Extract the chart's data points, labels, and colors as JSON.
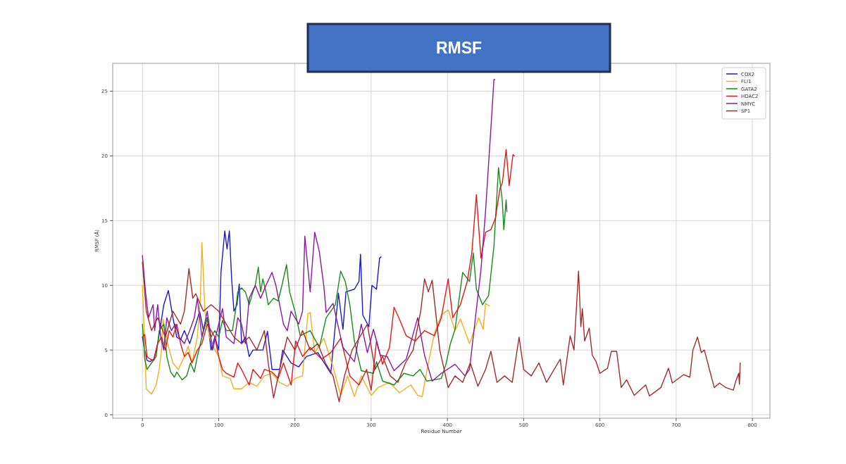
{
  "chart_data": {
    "type": "line",
    "title": "RMSF",
    "xlabel": "Residue Number",
    "ylabel": "RMSF (Å)",
    "xlim": [
      -39,
      823
    ],
    "ylim": [
      -0.27,
      27.15
    ],
    "xticks": [
      0,
      100,
      200,
      300,
      400,
      500,
      600,
      700,
      800
    ],
    "yticks": [
      0,
      5,
      10,
      15,
      20,
      25
    ],
    "grid": true,
    "legend": "top right",
    "marker": "none",
    "line_style": "solid",
    "series": [
      {
        "name": "COX2",
        "color": "#1a1acc",
        "x": [
          0,
          3,
          6,
          10,
          15,
          20,
          28,
          34,
          40,
          45,
          50,
          55,
          62,
          70,
          75,
          80,
          85,
          90,
          95,
          100,
          103,
          108,
          111,
          114,
          117,
          120,
          124,
          127,
          130,
          135,
          140,
          145,
          158,
          164,
          170,
          180,
          184,
          195,
          205,
          215,
          230,
          247,
          257,
          263,
          267,
          278,
          284,
          286,
          289,
          297,
          301,
          307,
          311,
          313
        ],
        "values": [
          6,
          5,
          4.2,
          4.1,
          4.3,
          5.5,
          8.5,
          9.6,
          7.5,
          6,
          5.8,
          6.5,
          5.5,
          7,
          8,
          6.5,
          7.5,
          5,
          6,
          5,
          11,
          14.2,
          12.8,
          14.2,
          10.5,
          8,
          8.5,
          10.1,
          5.5,
          6,
          4.5,
          5,
          5,
          6.45,
          3.5,
          3.5,
          5,
          4,
          3.7,
          4.5,
          4.8,
          3.2,
          9.4,
          6.6,
          9.5,
          9.7,
          10.3,
          12.4,
          7.7,
          6.8,
          10,
          9.7,
          12.1,
          12.2
        ]
      },
      {
        "name": "FLI1",
        "color": "#f0b020",
        "x": [
          0,
          5,
          12,
          18,
          22,
          25,
          27,
          33,
          40,
          47,
          55,
          60,
          65,
          72,
          76,
          78,
          82,
          88,
          95,
          100,
          105,
          115,
          120,
          130,
          140,
          150,
          160,
          170,
          180,
          190,
          200,
          210,
          217,
          220,
          226,
          238,
          250,
          260,
          269,
          278,
          287,
          300,
          309,
          324,
          337,
          352,
          361,
          367,
          373,
          383,
          392,
          401,
          410,
          417,
          429,
          441,
          447,
          450,
          455
        ],
        "values": [
          10,
          2,
          1.6,
          2.3,
          3.5,
          5,
          7.4,
          5.5,
          4,
          3.5,
          4.5,
          5.3,
          4,
          6,
          9,
          13.3,
          8,
          6,
          5,
          4.5,
          3,
          2.8,
          2,
          2,
          2.5,
          2.2,
          3,
          3.2,
          2.5,
          2.2,
          2.8,
          3,
          7.8,
          7.9,
          4.8,
          5.9,
          3.7,
          1.5,
          3,
          1.4,
          3,
          1.5,
          2.1,
          2.5,
          1.7,
          2.3,
          1.5,
          1.4,
          3.4,
          6.3,
          7.7,
          8.1,
          6.5,
          7.4,
          5.5,
          7.5,
          6.6,
          8.6,
          8.4
        ]
      },
      {
        "name": "GATA2",
        "color": "#1a8a1a",
        "x": [
          0,
          3,
          6,
          12,
          18,
          22,
          28,
          32,
          37,
          42,
          45,
          52,
          58,
          63,
          68,
          72,
          78,
          85,
          90,
          95,
          100,
          105,
          110,
          118,
          122,
          125,
          130,
          135,
          140,
          145,
          148,
          152,
          155,
          158,
          162,
          165,
          172,
          178,
          183,
          189,
          193,
          200,
          207,
          220,
          232,
          241,
          253,
          260,
          266,
          272,
          278,
          287,
          303,
          307,
          315,
          330,
          343,
          355,
          364,
          373,
          392,
          398,
          404,
          410,
          420,
          429,
          434,
          438,
          446,
          454,
          461,
          467,
          472,
          474,
          477,
          478
        ],
        "values": [
          7,
          4.3,
          3.5,
          4,
          4.5,
          6.5,
          7,
          4.5,
          3.3,
          2.9,
          3.3,
          2.7,
          3,
          4,
          3.3,
          4.5,
          6,
          7.5,
          6,
          6.5,
          6,
          7.3,
          6.5,
          6.5,
          8,
          9.5,
          9.8,
          9.5,
          8.5,
          9.5,
          10,
          11.4,
          9.5,
          10.5,
          9.5,
          8.5,
          9,
          8.8,
          10,
          11.6,
          9.5,
          8,
          6.1,
          6.5,
          5.2,
          7.5,
          8.5,
          11.1,
          10.3,
          8.5,
          5.7,
          3.4,
          3.2,
          4.1,
          2.6,
          2.3,
          3.2,
          3,
          3.5,
          2.6,
          2.8,
          3.9,
          5.5,
          6.6,
          11,
          10.3,
          12.5,
          9.7,
          8.5,
          9.2,
          13,
          19.1,
          16.5,
          14.3,
          16.6,
          15.7
        ]
      },
      {
        "name": "HDAC2",
        "color": "#e01818",
        "x": [
          0,
          3,
          6,
          10,
          15,
          20,
          25,
          30,
          35,
          40,
          45,
          50,
          55,
          60,
          65,
          72,
          78,
          85,
          90,
          95,
          100,
          105,
          110,
          120,
          125,
          130,
          140,
          145,
          155,
          160,
          170,
          178,
          185,
          195,
          201,
          210,
          220,
          235,
          247,
          260,
          272,
          284,
          294,
          300,
          307,
          315,
          324,
          330,
          337,
          346,
          358,
          370,
          383,
          392,
          401,
          407,
          417,
          426,
          432,
          438,
          444,
          450,
          457,
          463,
          469,
          472,
          477,
          481,
          486,
          488
        ],
        "values": [
          6,
          6.2,
          4.5,
          4.3,
          4.2,
          5.5,
          6,
          5,
          6.5,
          6,
          7,
          5.5,
          4.5,
          4.8,
          4,
          5,
          5.5,
          7,
          6.5,
          6,
          4.5,
          3.5,
          3.2,
          2.9,
          4,
          3.5,
          2.3,
          3.5,
          2.8,
          3.5,
          3.3,
          2.8,
          4,
          2.3,
          5.7,
          4.5,
          5.2,
          4.3,
          4.8,
          5.9,
          3,
          2.3,
          3.5,
          1.9,
          5.7,
          3.9,
          5.2,
          8.3,
          7.4,
          6.1,
          5.7,
          6.5,
          6.1,
          7.5,
          10.5,
          7.5,
          8.5,
          10.3,
          12.5,
          17,
          12.1,
          14.1,
          14.3,
          15.2,
          17.5,
          17.9,
          20.5,
          17.7,
          20.1,
          20
        ]
      },
      {
        "name": "NMYC",
        "color": "#8a1a9a",
        "x": [
          0,
          4,
          8,
          14,
          16,
          20,
          24,
          28,
          32,
          38,
          43,
          48,
          55,
          62,
          68,
          72,
          78,
          85,
          92,
          100,
          105,
          110,
          120,
          125,
          130,
          135,
          140,
          148,
          155,
          162,
          170,
          175,
          180,
          185,
          190,
          195,
          205,
          210,
          213,
          220,
          226,
          232,
          238,
          241,
          250,
          263,
          278,
          287,
          295,
          303,
          312,
          321,
          330,
          346,
          361,
          370,
          380,
          392,
          410,
          423,
          429,
          435,
          444,
          450,
          455,
          458,
          461,
          462
        ],
        "values": [
          12.3,
          9.5,
          7.5,
          8.5,
          6.5,
          8.5,
          6,
          5,
          7.5,
          6.5,
          7,
          6,
          5.5,
          6.5,
          7.5,
          9,
          6,
          8,
          5,
          7,
          8.2,
          6,
          5.5,
          7.5,
          7,
          5.5,
          9,
          10,
          9,
          10,
          11,
          10,
          8.5,
          7,
          6.5,
          8,
          7,
          8,
          13.8,
          9.5,
          14.1,
          12.6,
          9.9,
          7.9,
          8.6,
          5.2,
          4.1,
          7,
          4.8,
          6.6,
          4.6,
          4.5,
          3.4,
          4.3,
          7.5,
          4.6,
          2.6,
          3.2,
          3.9,
          3,
          3.5,
          6.6,
          11.2,
          15.7,
          20.3,
          23,
          25.9,
          25.9
        ]
      },
      {
        "name": "SP1",
        "color": "#a52a2a",
        "x": [
          0,
          5,
          12,
          20,
          30,
          40,
          50,
          55,
          61,
          66,
          70,
          80,
          90,
          100,
          110,
          120,
          130,
          140,
          150,
          160,
          165,
          172,
          180,
          190,
          200,
          210,
          220,
          230,
          240,
          250,
          258,
          265,
          275,
          285,
          295,
          305,
          315,
          325,
          335,
          345,
          355,
          365,
          370,
          375,
          380,
          390,
          401,
          410,
          420,
          430,
          440,
          450,
          457,
          465,
          475,
          485,
          494,
          500,
          510,
          520,
          530,
          540,
          548,
          552,
          561,
          566,
          572,
          575,
          577,
          580,
          586,
          590,
          595,
          600,
          610,
          615,
          622,
          628,
          635,
          645,
          660,
          665,
          680,
          690,
          695,
          710,
          718,
          722,
          728,
          733,
          737,
          745,
          750,
          757,
          765,
          775,
          778,
          782,
          783,
          784
        ],
        "values": [
          11.8,
          8,
          6.5,
          7.5,
          6,
          8,
          7,
          8,
          11.3,
          9,
          9.35,
          8,
          8.5,
          8,
          7,
          6,
          5.5,
          6,
          5,
          6.5,
          4,
          1.3,
          3.5,
          6,
          5,
          6.5,
          5,
          5.5,
          4,
          3,
          1,
          3,
          5,
          6,
          7,
          3.5,
          4.5,
          3,
          2.5,
          4,
          5,
          8,
          10.5,
          9.5,
          10.4,
          5,
          2.1,
          3,
          2.5,
          4,
          2.2,
          3.5,
          4.9,
          2.5,
          3,
          2.5,
          6,
          3.5,
          3,
          4,
          2.5,
          3.5,
          4.3,
          2.3,
          6.1,
          5,
          11.1,
          6.8,
          8.2,
          5.7,
          6.7,
          4.6,
          4.1,
          3.2,
          3.6,
          4.9,
          4.9,
          2.1,
          2.7,
          1.5,
          2.3,
          1.45,
          2.1,
          3.6,
          2.45,
          3.1,
          2.9,
          5,
          6,
          4.8,
          5,
          3.2,
          2.1,
          2.45,
          2.1,
          1.9,
          2.55,
          3.2,
          2.35,
          4
        ]
      }
    ]
  }
}
